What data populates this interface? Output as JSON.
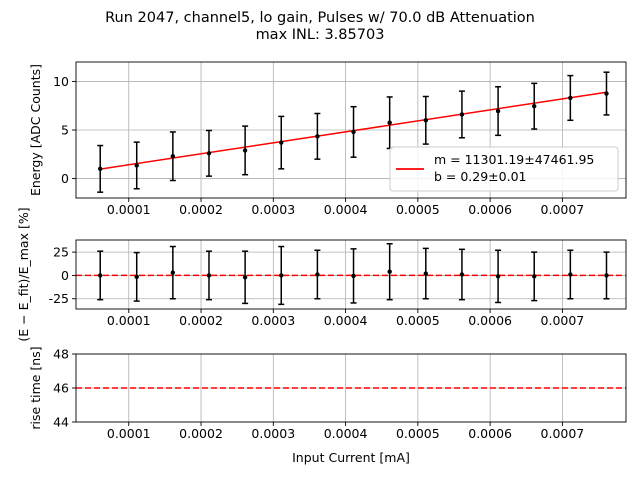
{
  "title_line1": "Run 2047, channel5, lo gain, Pulses w/ 70.0 dB Attenuation",
  "title_line2": "max INL: 3.85703",
  "colors": {
    "data": "#000000",
    "fit": "#ff0000",
    "grid": "#b0b0b0"
  },
  "chart_data": [
    {
      "type": "scatter",
      "name": "energy",
      "x": [
        6.05e-05,
        0.000111,
        0.000161,
        0.000211,
        0.000261,
        0.000311,
        0.000361,
        0.000411,
        0.000461,
        0.000511,
        0.000561,
        0.000611,
        0.000661,
        0.000711,
        0.000761
      ],
      "y": [
        1.0,
        1.35,
        2.3,
        2.6,
        2.9,
        3.7,
        4.35,
        4.8,
        5.75,
        6.0,
        6.6,
        6.95,
        7.45,
        8.3,
        8.75
      ],
      "yerr": [
        2.4,
        2.4,
        2.5,
        2.35,
        2.5,
        2.7,
        2.35,
        2.6,
        2.65,
        2.45,
        2.4,
        2.5,
        2.35,
        2.3,
        2.2
      ],
      "fit": {
        "m": 11301.19,
        "b": 0.29
      },
      "xlim": [
        2.7e-05,
        0.000788
      ],
      "ylim": [
        -2.0,
        12.0
      ],
      "yticks": [
        0,
        5,
        10
      ],
      "xticks": [
        0.0001,
        0.0002,
        0.0003,
        0.0004,
        0.0005,
        0.0006,
        0.0007
      ],
      "xticklabels": [
        "0.0001",
        "0.0002",
        "0.0003",
        "0.0004",
        "0.0005",
        "0.0006",
        "0.0007"
      ],
      "ylabel": "Energy [ADC Counts]",
      "legend": "m = 11301.19±47461.95\nb = 0.29±0.01",
      "legend_loc": "lower right",
      "grid": true
    },
    {
      "type": "scatter",
      "name": "residuals",
      "x": [
        6.05e-05,
        0.000111,
        0.000161,
        0.000211,
        0.000261,
        0.000311,
        0.000361,
        0.000411,
        0.000461,
        0.000511,
        0.000561,
        0.000611,
        0.000661,
        0.000711,
        0.000761
      ],
      "y": [
        0.0,
        -1.5,
        3.0,
        0.0,
        -2.0,
        0.0,
        1.0,
        -0.5,
        4.0,
        2.0,
        1.0,
        -1.0,
        -1.0,
        1.0,
        0.0
      ],
      "yerr": [
        26,
        26,
        28,
        26,
        28,
        31,
        26,
        29,
        30,
        27,
        27,
        28,
        26,
        26,
        25
      ],
      "reference_line": 0,
      "xlim": [
        2.7e-05,
        0.000788
      ],
      "ylim": [
        -36,
        38
      ],
      "yticks": [
        -25,
        0,
        25
      ],
      "xticks": [
        0.0001,
        0.0002,
        0.0003,
        0.0004,
        0.0005,
        0.0006,
        0.0007
      ],
      "xticklabels": [
        "0.0001",
        "0.0002",
        "0.0003",
        "0.0004",
        "0.0005",
        "0.0006",
        "0.0007"
      ],
      "ylabel": "(E − E_fit)/E_max [%]",
      "grid": true
    },
    {
      "type": "line",
      "name": "rise-time",
      "reference_line": 46,
      "xlim": [
        2.7e-05,
        0.000788
      ],
      "ylim": [
        44,
        48
      ],
      "yticks": [
        44,
        46,
        48
      ],
      "xticks": [
        0.0001,
        0.0002,
        0.0003,
        0.0004,
        0.0005,
        0.0006,
        0.0007
      ],
      "xticklabels": [
        "0.0001",
        "0.0002",
        "0.0003",
        "0.0004",
        "0.0005",
        "0.0006",
        "0.0007"
      ],
      "ylabel": "rise time [ns]",
      "xlabel": "Input Current [mA]",
      "grid": true
    }
  ]
}
